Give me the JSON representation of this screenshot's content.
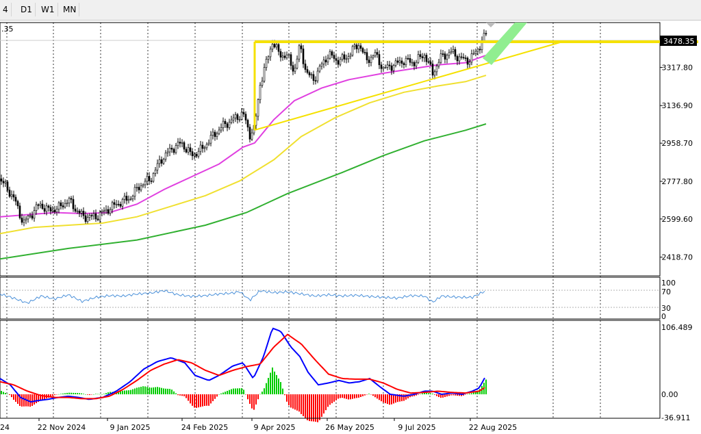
{
  "toolbar": {
    "timeframes": [
      "4",
      "D1",
      "W1",
      "MN"
    ]
  },
  "main_panel": {
    "corner_label": ".35",
    "current_price_label": "3478.35"
  },
  "colors": {
    "up_candle": "#000000",
    "down_candle": "#000000",
    "ma_fast": "#e040e0",
    "ma_mid": "#f0e030",
    "ma_slow": "#30b030",
    "trendlines": "#f5e100",
    "projection": "#90ee90",
    "rsi": "#4a90d9",
    "macd_line": "#0000ff",
    "signal_line": "#ff0000",
    "hist_up": "#00cc00",
    "hist_down": "#ff0000"
  },
  "chart_data": [
    {
      "type": "candlestick",
      "panel": "price",
      "x_labels": [
        "22 Nov 2024",
        "9 Jan 2025",
        "24 Feb 2025",
        "9 Apr 2025",
        "26 May 2025",
        "9 Jul 2025",
        "22 Aug 2025"
      ],
      "y_ticks": [
        "3317.80",
        "3136.90",
        "2958.70",
        "2777.80",
        "2599.60",
        "2418.70"
      ],
      "ylim": [
        2330,
        3530
      ],
      "series": [
        {
          "kind": "close",
          "points": [
            [
              0,
              2790
            ],
            [
              20,
              2700
            ],
            [
              34,
              2580
            ],
            [
              48,
              2630
            ],
            [
              58,
              2670
            ],
            [
              70,
              2640
            ],
            [
              85,
              2650
            ],
            [
              100,
              2690
            ],
            [
              112,
              2640
            ],
            [
              122,
              2610
            ],
            [
              140,
              2610
            ],
            [
              155,
              2640
            ],
            [
              170,
              2670
            ],
            [
              190,
              2700
            ],
            [
              205,
              2760
            ],
            [
              220,
              2790
            ],
            [
              235,
              2880
            ],
            [
              250,
              2930
            ],
            [
              265,
              2960
            ],
            [
              280,
              2900
            ],
            [
              295,
              2930
            ],
            [
              310,
              2990
            ],
            [
              325,
              3040
            ],
            [
              340,
              3070
            ],
            [
              355,
              3100
            ],
            [
              365,
              3000
            ],
            [
              372,
              3030
            ],
            [
              380,
              3240
            ],
            [
              390,
              3350
            ],
            [
              398,
              3440
            ],
            [
              408,
              3380
            ],
            [
              420,
              3370
            ],
            [
              430,
              3300
            ],
            [
              438,
              3420
            ],
            [
              448,
              3290
            ],
            [
              458,
              3260
            ],
            [
              470,
              3330
            ],
            [
              480,
              3380
            ],
            [
              492,
              3350
            ],
            [
              505,
              3360
            ],
            [
              515,
              3400
            ],
            [
              525,
              3430
            ],
            [
              535,
              3350
            ],
            [
              548,
              3380
            ],
            [
              560,
              3310
            ],
            [
              575,
              3330
            ],
            [
              590,
              3350
            ],
            [
              605,
              3340
            ],
            [
              620,
              3380
            ],
            [
              632,
              3290
            ],
            [
              645,
              3370
            ],
            [
              660,
              3390
            ],
            [
              672,
              3360
            ],
            [
              685,
              3350
            ],
            [
              695,
              3390
            ],
            [
              704,
              3440
            ],
            [
              710,
              3478
            ]
          ]
        },
        {
          "kind": "ma_fast",
          "points": [
            [
              0,
              2610
            ],
            [
              40,
              2620
            ],
            [
              80,
              2630
            ],
            [
              120,
              2625
            ],
            [
              160,
              2630
            ],
            [
              200,
              2670
            ],
            [
              240,
              2740
            ],
            [
              280,
              2800
            ],
            [
              320,
              2860
            ],
            [
              355,
              2940
            ],
            [
              372,
              2960
            ],
            [
              400,
              3070
            ],
            [
              430,
              3160
            ],
            [
              470,
              3220
            ],
            [
              510,
              3260
            ],
            [
              560,
              3290
            ],
            [
              600,
              3310
            ],
            [
              640,
              3330
            ],
            [
              680,
              3340
            ],
            [
              710,
              3375
            ]
          ]
        },
        {
          "kind": "ma_mid",
          "points": [
            [
              0,
              2530
            ],
            [
              50,
              2560
            ],
            [
              100,
              2570
            ],
            [
              150,
              2580
            ],
            [
              200,
              2610
            ],
            [
              250,
              2660
            ],
            [
              300,
              2710
            ],
            [
              350,
              2780
            ],
            [
              400,
              2880
            ],
            [
              440,
              2990
            ],
            [
              490,
              3080
            ],
            [
              540,
              3150
            ],
            [
              590,
              3200
            ],
            [
              640,
              3230
            ],
            [
              680,
              3250
            ],
            [
              710,
              3280
            ]
          ]
        },
        {
          "kind": "ma_slow",
          "points": [
            [
              0,
              2410
            ],
            [
              100,
              2460
            ],
            [
              200,
              2500
            ],
            [
              300,
              2570
            ],
            [
              360,
              2630
            ],
            [
              420,
              2720
            ],
            [
              500,
              2820
            ],
            [
              560,
              2900
            ],
            [
              620,
              2970
            ],
            [
              680,
              3020
            ],
            [
              710,
              3050
            ]
          ]
        }
      ]
    },
    {
      "type": "line",
      "panel": "rsi",
      "y_ticks": [
        "100",
        "70",
        "30",
        "0"
      ],
      "ylim": [
        0,
        100
      ],
      "series": [
        {
          "name": "RSI",
          "points": [
            [
              0,
              60
            ],
            [
              20,
              50
            ],
            [
              40,
              38
            ],
            [
              60,
              55
            ],
            [
              80,
              48
            ],
            [
              100,
              58
            ],
            [
              120,
              42
            ],
            [
              140,
              52
            ],
            [
              160,
              56
            ],
            [
              180,
              55
            ],
            [
              200,
              60
            ],
            [
              220,
              62
            ],
            [
              240,
              68
            ],
            [
              260,
              58
            ],
            [
              280,
              54
            ],
            [
              300,
              56
            ],
            [
              320,
              60
            ],
            [
              340,
              62
            ],
            [
              350,
              66
            ],
            [
              365,
              45
            ],
            [
              380,
              68
            ],
            [
              400,
              63
            ],
            [
              420,
              65
            ],
            [
              440,
              60
            ],
            [
              460,
              55
            ],
            [
              480,
              58
            ],
            [
              500,
              55
            ],
            [
              520,
              57
            ],
            [
              540,
              54
            ],
            [
              560,
              52
            ],
            [
              580,
              50
            ],
            [
              600,
              56
            ],
            [
              620,
              55
            ],
            [
              632,
              40
            ],
            [
              645,
              55
            ],
            [
              670,
              52
            ],
            [
              690,
              52
            ],
            [
              710,
              68
            ]
          ]
        }
      ]
    },
    {
      "type": "line",
      "panel": "macd",
      "y_ticks": [
        "106.489",
        "0.00",
        "-36.911"
      ],
      "ylim": [
        -40,
        110
      ],
      "series": [
        {
          "name": "MACD",
          "points": [
            [
              0,
              25
            ],
            [
              15,
              15
            ],
            [
              30,
              -5
            ],
            [
              45,
              -12
            ],
            [
              55,
              -10
            ],
            [
              70,
              -8
            ],
            [
              85,
              -5
            ],
            [
              100,
              -3
            ],
            [
              115,
              -5
            ],
            [
              130,
              -8
            ],
            [
              150,
              -5
            ],
            [
              170,
              5
            ],
            [
              190,
              20
            ],
            [
              210,
              40
            ],
            [
              230,
              52
            ],
            [
              250,
              58
            ],
            [
              270,
              50
            ],
            [
              285,
              30
            ],
            [
              305,
              22
            ],
            [
              320,
              30
            ],
            [
              340,
              45
            ],
            [
              355,
              50
            ],
            [
              370,
              25
            ],
            [
              385,
              60
            ],
            [
              398,
              105
            ],
            [
              410,
              100
            ],
            [
              425,
              75
            ],
            [
              438,
              60
            ],
            [
              450,
              35
            ],
            [
              465,
              15
            ],
            [
              480,
              18
            ],
            [
              495,
              22
            ],
            [
              510,
              18
            ],
            [
              525,
              20
            ],
            [
              540,
              25
            ],
            [
              555,
              12
            ],
            [
              570,
              0
            ],
            [
              590,
              -3
            ],
            [
              605,
              0
            ],
            [
              620,
              5
            ],
            [
              632,
              5
            ],
            [
              645,
              0
            ],
            [
              660,
              2
            ],
            [
              675,
              0
            ],
            [
              690,
              5
            ],
            [
              700,
              10
            ],
            [
              710,
              30
            ]
          ]
        },
        {
          "name": "Signal",
          "points": [
            [
              0,
              20
            ],
            [
              20,
              15
            ],
            [
              40,
              5
            ],
            [
              60,
              -2
            ],
            [
              80,
              -5
            ],
            [
              100,
              -5
            ],
            [
              120,
              -7
            ],
            [
              140,
              -7
            ],
            [
              160,
              -3
            ],
            [
              180,
              8
            ],
            [
              200,
              22
            ],
            [
              220,
              38
            ],
            [
              240,
              48
            ],
            [
              260,
              55
            ],
            [
              280,
              50
            ],
            [
              300,
              38
            ],
            [
              320,
              30
            ],
            [
              340,
              38
            ],
            [
              360,
              44
            ],
            [
              380,
              48
            ],
            [
              400,
              75
            ],
            [
              420,
              95
            ],
            [
              440,
              80
            ],
            [
              460,
              55
            ],
            [
              480,
              32
            ],
            [
              500,
              25
            ],
            [
              520,
              24
            ],
            [
              540,
              24
            ],
            [
              560,
              18
            ],
            [
              580,
              8
            ],
            [
              600,
              2
            ],
            [
              620,
              3
            ],
            [
              640,
              5
            ],
            [
              660,
              3
            ],
            [
              680,
              2
            ],
            [
              700,
              5
            ],
            [
              710,
              12
            ]
          ]
        }
      ]
    }
  ]
}
